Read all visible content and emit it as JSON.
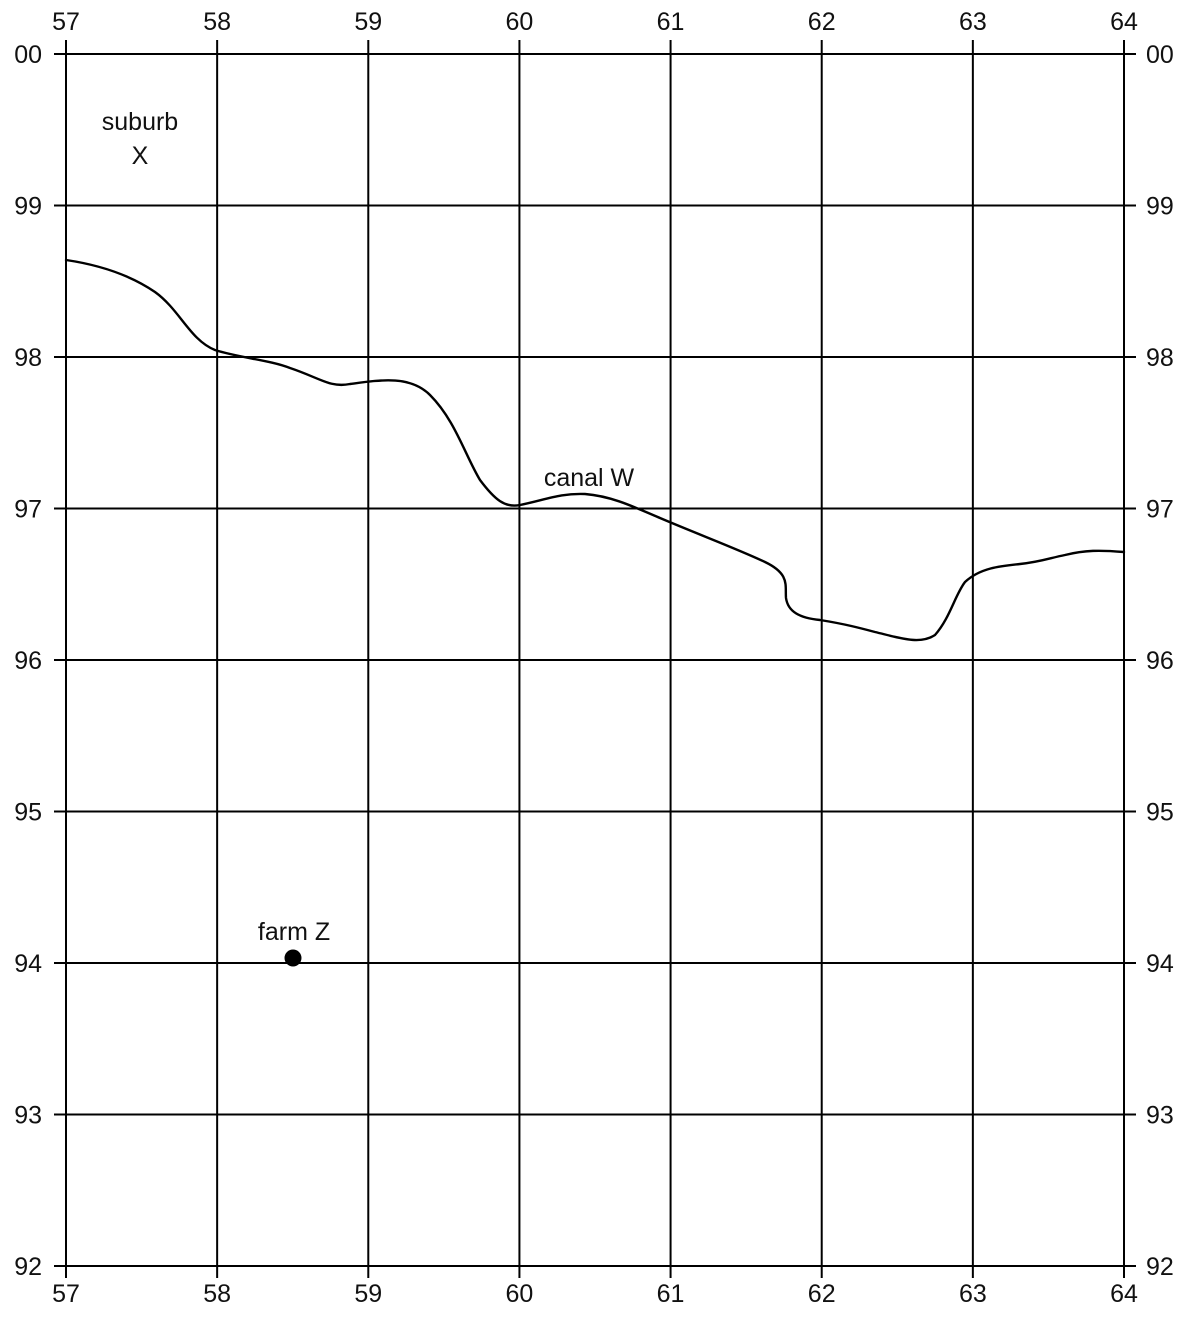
{
  "map": {
    "grid": {
      "eastings": [
        "57",
        "58",
        "59",
        "60",
        "61",
        "62",
        "63",
        "64"
      ],
      "northings": [
        "00",
        "99",
        "98",
        "97",
        "96",
        "95",
        "94",
        "93",
        "92"
      ]
    },
    "features": {
      "suburb": {
        "line1": "suburb",
        "line2": "X"
      },
      "canal": {
        "label": "canal W"
      },
      "farm": {
        "label": "farm Z"
      }
    }
  }
}
